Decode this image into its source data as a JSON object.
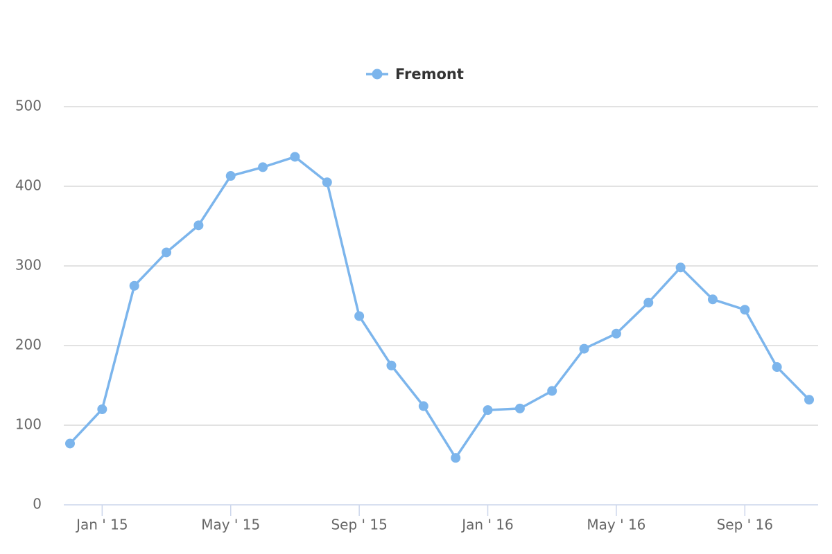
{
  "chart_data": {
    "type": "line",
    "categories": [
      null,
      "Jan ' 15",
      null,
      null,
      null,
      "May ' 15",
      null,
      null,
      null,
      "Sep ' 15",
      null,
      null,
      null,
      "Jan ' 16",
      null,
      null,
      null,
      "May ' 16",
      null,
      null,
      null,
      "Sep ' 16",
      null,
      null
    ],
    "series": [
      {
        "name": "Fremont",
        "color": "#7cb5ec",
        "values": [
          77,
          120,
          275,
          317,
          351,
          413,
          424,
          437,
          405,
          237,
          175,
          124,
          59,
          119,
          121,
          143,
          196,
          215,
          254,
          298,
          258,
          245,
          173,
          132
        ]
      }
    ],
    "ylim": [
      0,
      500
    ],
    "yticks": [
      0,
      100,
      200,
      300,
      400,
      500
    ],
    "grid": true,
    "legend": "top"
  }
}
